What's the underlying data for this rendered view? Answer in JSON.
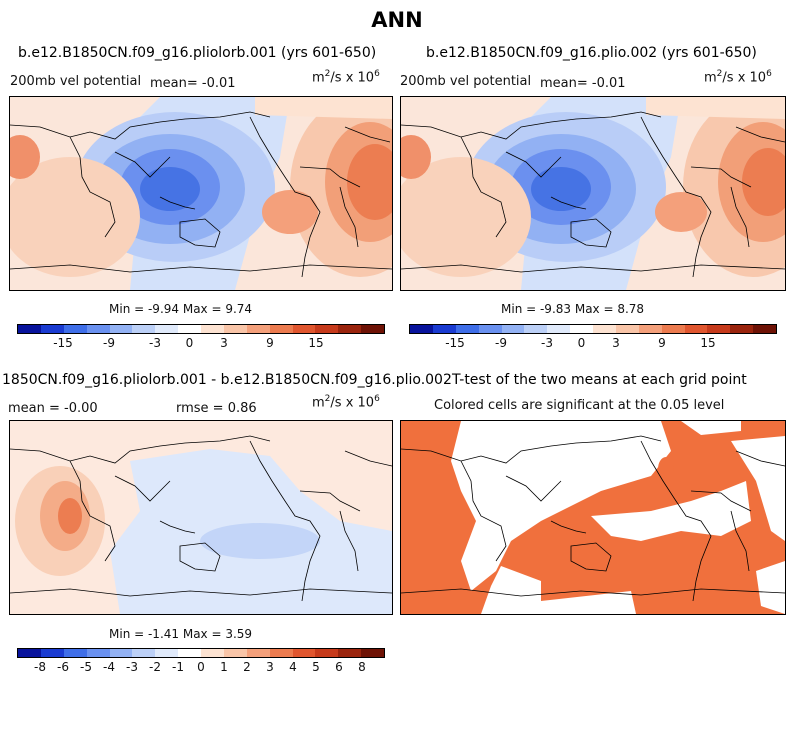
{
  "main_title": "ANN",
  "panels": {
    "p1": {
      "title": "b.e12.B1850CN.f09_g16.pliolorb.001 (yrs 601-650)",
      "variable": "200mb vel potential",
      "mean": "mean=   -0.01",
      "units_base": "m",
      "units_exp1": "2",
      "units_mid": "/s  x 10",
      "units_exp2": "6",
      "minmax": "Min =  -9.94 Max =   9.74"
    },
    "p2": {
      "title": "b.e12.B1850CN.f09_g16.plio.002 (yrs 601-650)",
      "variable": "200mb vel potential",
      "mean": "mean=   -0.01",
      "units_base": "m",
      "units_exp1": "2",
      "units_mid": "/s  x 10",
      "units_exp2": "6",
      "minmax": "Min =  -9.83 Max =   8.78"
    },
    "p3": {
      "title": "1850CN.f09_g16.pliolorb.001 - b.e12.B1850CN.f09_g16.plio.002",
      "mean": "mean =   -0.00",
      "rmse": "rmse =    0.86",
      "units_base": "m",
      "units_exp1": "2",
      "units_mid": "/s  x 10",
      "units_exp2": "6",
      "minmax": "Min =  -1.41 Max =   3.59"
    },
    "p4": {
      "title": "T-test of the two means at each grid point",
      "subtitle": "Colored cells are significant at the 0.05 level"
    }
  },
  "colorbar_top": {
    "colors": [
      "#08139c",
      "#1a3bd1",
      "#3f6ee8",
      "#6a91f0",
      "#93b2f4",
      "#bcd0f7",
      "#e0eafb",
      "#ffffff",
      "#fde3d2",
      "#f9c5a8",
      "#f4a07b",
      "#ec7b4f",
      "#e0562f",
      "#c63a1b",
      "#9a240d",
      "#6e1205"
    ],
    "ticks": [
      "-15",
      "-9",
      "-3",
      "0",
      "3",
      "9",
      "15"
    ],
    "tick_pos": [
      2,
      4,
      6,
      7.5,
      9,
      11,
      13
    ]
  },
  "colorbar_diff": {
    "colors": [
      "#08139c",
      "#1a3bd1",
      "#3f6ee8",
      "#6a91f0",
      "#93b2f4",
      "#bcd0f7",
      "#e0eafb",
      "#ffffff",
      "#fde3d2",
      "#f9c5a8",
      "#f4a07b",
      "#ec7b4f",
      "#e0562f",
      "#c63a1b",
      "#9a240d",
      "#6e1205"
    ],
    "ticks": [
      "-8",
      "-6",
      "-5",
      "-4",
      "-3",
      "-2",
      "-1",
      "0",
      "1",
      "2",
      "3",
      "4",
      "5",
      "6",
      "8"
    ]
  },
  "colors": {
    "significant": "#f0703d",
    "coast": "#000000"
  }
}
